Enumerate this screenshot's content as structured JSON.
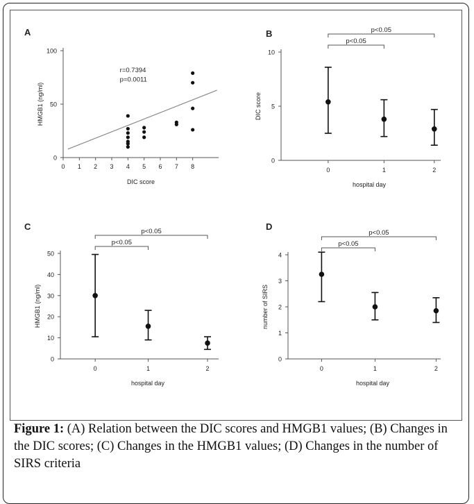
{
  "caption": {
    "label": "Figure 1:",
    "text": " (A) Relation between the DIC scores and HMGB1 values; (B) Changes in the DIC scores; (C) Changes in the HMGB1 values; (D) Changes in the number of SIRS criteria"
  },
  "chart_data": [
    {
      "panel": "A",
      "type": "scatter",
      "xlabel": "DIC score",
      "ylabel": "HMGB1 (ng/ml)",
      "xlim": [
        0,
        9.6
      ],
      "ylim": [
        0,
        100
      ],
      "xticks": [
        0,
        1,
        2,
        3,
        4,
        5,
        6,
        7,
        8
      ],
      "yticks": [
        0,
        50,
        100
      ],
      "points": [
        {
          "x": 4,
          "y": 39
        },
        {
          "x": 4,
          "y": 27
        },
        {
          "x": 4,
          "y": 23
        },
        {
          "x": 4,
          "y": 19
        },
        {
          "x": 4,
          "y": 15
        },
        {
          "x": 4,
          "y": 13
        },
        {
          "x": 4,
          "y": 10
        },
        {
          "x": 5,
          "y": 28
        },
        {
          "x": 5,
          "y": 24
        },
        {
          "x": 5,
          "y": 19
        },
        {
          "x": 7,
          "y": 33
        },
        {
          "x": 7,
          "y": 31
        },
        {
          "x": 8,
          "y": 79
        },
        {
          "x": 8,
          "y": 70
        },
        {
          "x": 8,
          "y": 46
        },
        {
          "x": 8,
          "y": 26
        }
      ],
      "fit_line": {
        "x": [
          0.3,
          9.5
        ],
        "y": [
          8,
          63
        ]
      },
      "annotations": [
        "r=0.7394",
        "p=0.0011"
      ]
    },
    {
      "panel": "B",
      "type": "errorbar",
      "xlabel": "hospital day",
      "ylabel": "DIC score",
      "categories": [
        "0",
        "1",
        "2"
      ],
      "ylim": [
        0,
        10
      ],
      "yticks": [
        0,
        5,
        10
      ],
      "points": [
        {
          "x": "0",
          "y": 5.4,
          "low": 2.5,
          "high": 8.6
        },
        {
          "x": "1",
          "y": 3.8,
          "low": 2.2,
          "high": 5.6
        },
        {
          "x": "2",
          "y": 2.9,
          "low": 1.4,
          "high": 4.7
        }
      ],
      "brackets": [
        {
          "from": "0",
          "to": "1",
          "label": "p<0.05"
        },
        {
          "from": "0",
          "to": "2",
          "label": "p<0.05"
        }
      ]
    },
    {
      "panel": "C",
      "type": "errorbar",
      "xlabel": "hospital day",
      "ylabel": "HMGB1 (ng/ml)",
      "categories": [
        "0",
        "1",
        "2"
      ],
      "ylim": [
        0,
        50
      ],
      "yticks": [
        0,
        10,
        20,
        30,
        40,
        50
      ],
      "points": [
        {
          "x": "0",
          "y": 30,
          "low": 10.5,
          "high": 49.5
        },
        {
          "x": "1",
          "y": 15.5,
          "low": 9,
          "high": 23
        },
        {
          "x": "2",
          "y": 7.5,
          "low": 4.5,
          "high": 10.5
        }
      ],
      "brackets": [
        {
          "from": "0",
          "to": "1",
          "label": "p<0.05"
        },
        {
          "from": "0",
          "to": "2",
          "label": "p<0.05"
        }
      ]
    },
    {
      "panel": "D",
      "type": "errorbar",
      "xlabel": "hospital day",
      "ylabel": "number of SIRS",
      "categories": [
        "0",
        "1",
        "2"
      ],
      "ylim": [
        0,
        4
      ],
      "yticks": [
        0,
        1,
        2,
        3,
        4
      ],
      "points": [
        {
          "x": "0",
          "y": 3.25,
          "low": 2.2,
          "high": 4.1
        },
        {
          "x": "1",
          "y": 2.0,
          "low": 1.5,
          "high": 2.55
        },
        {
          "x": "2",
          "y": 1.85,
          "low": 1.4,
          "high": 2.35
        }
      ],
      "brackets": [
        {
          "from": "0",
          "to": "1",
          "label": "p<0.05"
        },
        {
          "from": "0",
          "to": "2",
          "label": "p<0.05"
        }
      ]
    }
  ]
}
